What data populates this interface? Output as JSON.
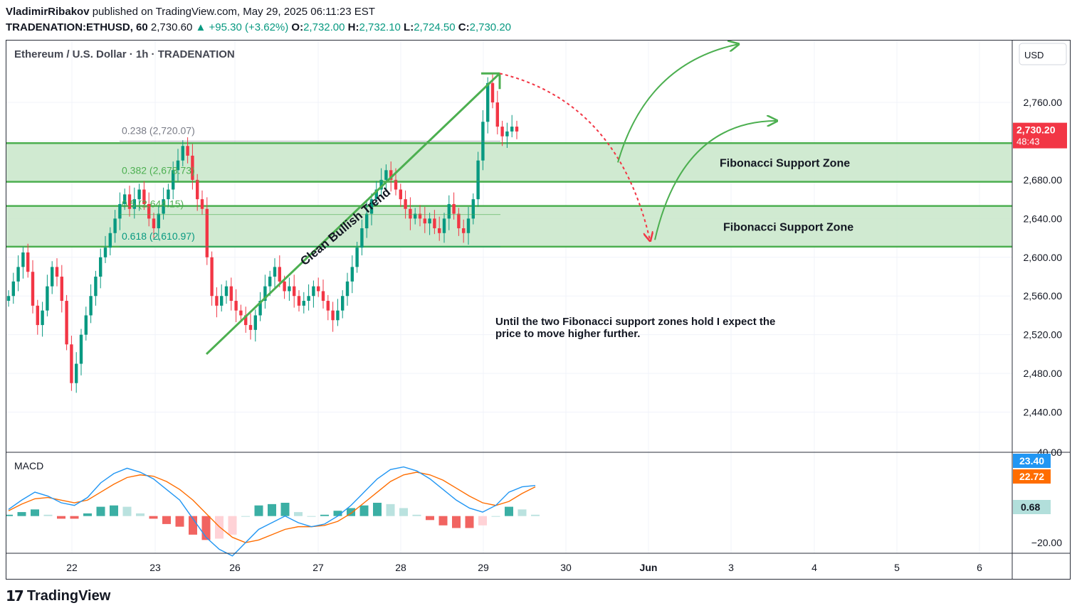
{
  "header": {
    "author": "VladimirRibakov",
    "published_text": "published on TradingView.com, May 29, 2025 06:11:23 EST",
    "symbol": "TRADENATION:ETHUSD, 60",
    "last": "2,730.60",
    "change": "+95.30 (+3.62%)",
    "o_label": "O:",
    "o": "2,732.00",
    "h_label": "H:",
    "h": "2,732.10",
    "l_label": "L:",
    "l": "2,724.50",
    "c_label": "C:",
    "c": "2,730.20"
  },
  "chart_title": "Ethereum / U.S. Dollar · 1h · TRADENATION",
  "currency": "USD",
  "colors": {
    "up": "#089981",
    "down": "#f23645",
    "zone_fill": "#c8e6c9",
    "zone_line": "#4caf50",
    "macd": "#2196f3",
    "signal": "#ff6d00"
  },
  "chart_data": {
    "type": "line",
    "title": "Ethereum / U.S. Dollar · 1h · TRADENATION",
    "ylim": [
      2400,
      2810
    ],
    "y_ticks": [
      2440,
      2480,
      2520,
      2560,
      2600,
      2640,
      2680,
      2720,
      2760
    ],
    "y_tick_labels": [
      "2,440.00",
      "2,480.00",
      "2,520.00",
      "2,560.00",
      "2,600.00",
      "2,640.00",
      "2,680.00",
      "2,720.00",
      "2,760.00"
    ],
    "x_tick_labels": [
      "22",
      "23",
      "26",
      "27",
      "28",
      "29",
      "30",
      "Jun",
      "3",
      "4",
      "5",
      "6"
    ],
    "price_label": "2,730.20",
    "countdown": "48:43",
    "close_series": [
      2560,
      2575,
      2590,
      2605,
      2585,
      2550,
      2530,
      2545,
      2570,
      2590,
      2580,
      2555,
      2510,
      2470,
      2490,
      2520,
      2540,
      2560,
      2580,
      2600,
      2610,
      2625,
      2640,
      2655,
      2665,
      2650,
      2660,
      2670,
      2655,
      2640,
      2630,
      2645,
      2660,
      2670,
      2690,
      2700,
      2715,
      2705,
      2680,
      2660,
      2650,
      2600,
      2560,
      2550,
      2560,
      2570,
      2555,
      2545,
      2540,
      2530,
      2525,
      2540,
      2555,
      2570,
      2580,
      2590,
      2575,
      2565,
      2570,
      2560,
      2550,
      2555,
      2560,
      2570,
      2565,
      2555,
      2545,
      2535,
      2545,
      2560,
      2575,
      2590,
      2610,
      2630,
      2645,
      2660,
      2670,
      2680,
      2690,
      2680,
      2670,
      2660,
      2650,
      2640,
      2645,
      2640,
      2635,
      2640,
      2630,
      2625,
      2640,
      2655,
      2645,
      2630,
      2625,
      2640,
      2660,
      2700,
      2740,
      2780,
      2760,
      2735,
      2725,
      2730,
      2735,
      2730
    ],
    "fib_levels": [
      {
        "label": "0.238 (2,720.07)",
        "value": 2720.07
      },
      {
        "label": "0.382 (2,678.73)",
        "value": 2678.73
      },
      {
        "label": "0.5 (2,644.15)",
        "value": 2644.15
      },
      {
        "label": "0.618 (2,610.97)",
        "value": 2610.97
      }
    ],
    "zones": [
      {
        "label": "Fibonacci Support Zone",
        "from": 2678,
        "to": 2718
      },
      {
        "label": "Fibonacci Support Zone",
        "from": 2611,
        "to": 2653
      }
    ],
    "annotations": {
      "trend": "Clean Bullish Trend",
      "note_line1": "Until the two Fibonacci support zones hold I expect the",
      "note_line2": "price to move higher further."
    },
    "macd": {
      "title": "MACD",
      "ylim": [
        -28,
        48
      ],
      "tick_label_bottom": "−20.00",
      "tick_label_top_partial": "40.00",
      "macd_value": "23.40",
      "signal_value": "22.72",
      "hist_value": "0.68",
      "macd_series": [
        5,
        12,
        18,
        15,
        10,
        8,
        14,
        25,
        32,
        36,
        33,
        28,
        20,
        12,
        -2,
        -16,
        -25,
        -30,
        -20,
        -10,
        -5,
        0,
        -5,
        -8,
        -6,
        0,
        8,
        18,
        28,
        35,
        37,
        34,
        28,
        20,
        12,
        6,
        3,
        8,
        18,
        22,
        23
      ],
      "signal_series": [
        4,
        9,
        13,
        14,
        12,
        10,
        12,
        18,
        24,
        29,
        31,
        30,
        26,
        20,
        12,
        2,
        -8,
        -16,
        -20,
        -18,
        -14,
        -10,
        -8,
        -8,
        -7,
        -4,
        2,
        10,
        18,
        26,
        31,
        33,
        31,
        27,
        21,
        15,
        10,
        8,
        11,
        17,
        22
      ],
      "hist_series": [
        1,
        3,
        5,
        1,
        -2,
        -2,
        2,
        7,
        8,
        7,
        2,
        -2,
        -6,
        -8,
        -14,
        -18,
        -17,
        -14,
        0,
        8,
        9,
        10,
        3,
        0,
        1,
        4,
        6,
        8,
        10,
        9,
        6,
        1,
        -3,
        -7,
        -9,
        -9,
        -7,
        0,
        7,
        5,
        1
      ]
    }
  },
  "footer": {
    "brand": "TradingView"
  }
}
